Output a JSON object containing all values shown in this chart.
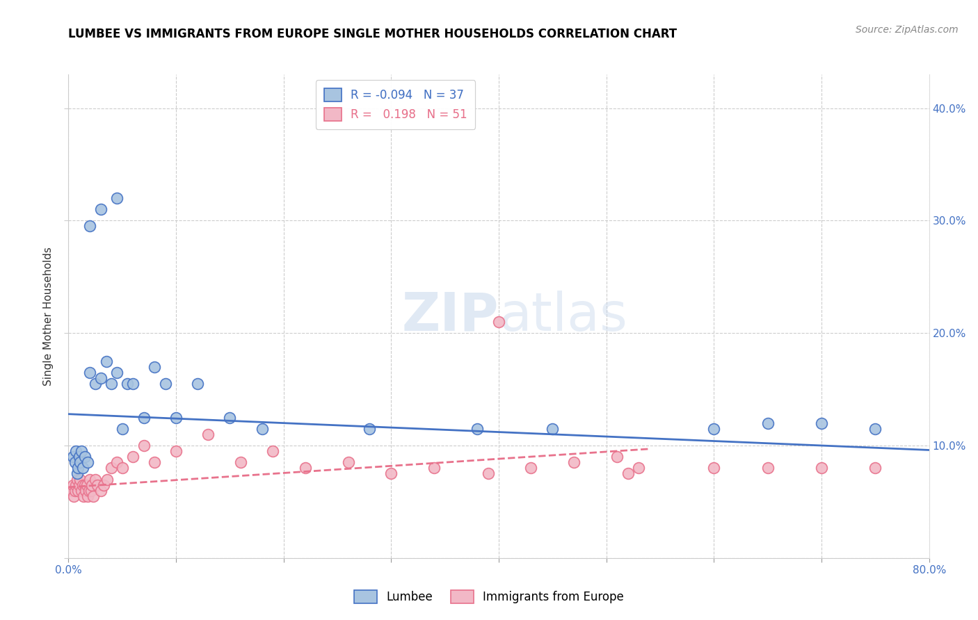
{
  "title": "LUMBEE VS IMMIGRANTS FROM EUROPE SINGLE MOTHER HOUSEHOLDS CORRELATION CHART",
  "source": "Source: ZipAtlas.com",
  "ylabel": "Single Mother Households",
  "xlim": [
    0.0,
    0.8
  ],
  "ylim": [
    0.0,
    0.43
  ],
  "lumbee_color": "#a8c4e0",
  "europe_color": "#f2b8c6",
  "lumbee_R": -0.094,
  "lumbee_N": 37,
  "europe_R": 0.198,
  "europe_N": 51,
  "lumbee_line_color": "#4472c4",
  "europe_line_color": "#e8728c",
  "lumbee_x": [
    0.004,
    0.006,
    0.007,
    0.008,
    0.009,
    0.01,
    0.011,
    0.012,
    0.013,
    0.015,
    0.018,
    0.02,
    0.025,
    0.03,
    0.035,
    0.04,
    0.045,
    0.05,
    0.055,
    0.06,
    0.07,
    0.08,
    0.09,
    0.1,
    0.12,
    0.15,
    0.18,
    0.28,
    0.38,
    0.45,
    0.6,
    0.65,
    0.7,
    0.75,
    0.02,
    0.03,
    0.045
  ],
  "lumbee_y": [
    0.09,
    0.085,
    0.095,
    0.075,
    0.08,
    0.09,
    0.085,
    0.095,
    0.08,
    0.09,
    0.085,
    0.165,
    0.155,
    0.16,
    0.175,
    0.155,
    0.165,
    0.115,
    0.155,
    0.155,
    0.125,
    0.17,
    0.155,
    0.125,
    0.155,
    0.125,
    0.115,
    0.115,
    0.115,
    0.115,
    0.115,
    0.12,
    0.12,
    0.115,
    0.295,
    0.31,
    0.32
  ],
  "europe_x": [
    0.003,
    0.004,
    0.005,
    0.006,
    0.007,
    0.008,
    0.009,
    0.01,
    0.011,
    0.012,
    0.013,
    0.014,
    0.015,
    0.016,
    0.017,
    0.018,
    0.019,
    0.02,
    0.021,
    0.022,
    0.023,
    0.025,
    0.027,
    0.03,
    0.033,
    0.036,
    0.04,
    0.045,
    0.05,
    0.06,
    0.07,
    0.08,
    0.1,
    0.13,
    0.16,
    0.19,
    0.22,
    0.26,
    0.3,
    0.34,
    0.39,
    0.43,
    0.47,
    0.51,
    0.52,
    0.53,
    0.6,
    0.65,
    0.7,
    0.75,
    0.4
  ],
  "europe_y": [
    0.06,
    0.065,
    0.055,
    0.06,
    0.065,
    0.07,
    0.06,
    0.065,
    0.07,
    0.06,
    0.065,
    0.055,
    0.065,
    0.06,
    0.065,
    0.055,
    0.06,
    0.07,
    0.06,
    0.065,
    0.055,
    0.07,
    0.065,
    0.06,
    0.065,
    0.07,
    0.08,
    0.085,
    0.08,
    0.09,
    0.1,
    0.085,
    0.095,
    0.11,
    0.085,
    0.095,
    0.08,
    0.085,
    0.075,
    0.08,
    0.075,
    0.08,
    0.085,
    0.09,
    0.075,
    0.08,
    0.08,
    0.08,
    0.08,
    0.08,
    0.21
  ],
  "lumbee_line_x": [
    0.0,
    0.8
  ],
  "lumbee_line_y": [
    0.128,
    0.096
  ],
  "europe_line_x": [
    0.0,
    0.54
  ],
  "europe_line_y": [
    0.063,
    0.097
  ]
}
